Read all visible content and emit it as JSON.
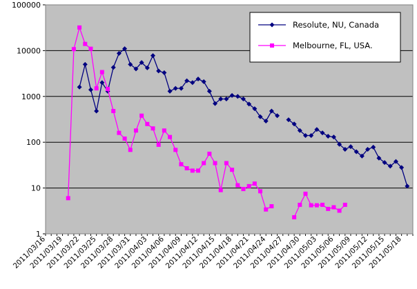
{
  "chart_data": {
    "type": "line",
    "title": "",
    "xlabel": "",
    "ylabel": "",
    "y_scale": "log",
    "ylim": [
      1,
      100000
    ],
    "y_ticks": [
      "1",
      "10",
      "100",
      "1000",
      "10000",
      "100000"
    ],
    "grid": "horizontal",
    "legend_position": "top-right",
    "x_start": "2011-03-16",
    "x_end": "2011-05-20",
    "x_tick_labels": [
      "2011/03/16",
      "2011/03/19",
      "2011/03/22",
      "2011/03/25",
      "2011/03/28",
      "2011/03/31",
      "2011/04/03",
      "2011/04/06",
      "2011/04/09",
      "2011/04/12",
      "2011/04/15",
      "2011/04/18",
      "2011/04/21",
      "2011/04/24",
      "2011/04/27",
      "2011/04/30",
      "2011/05/03",
      "2011/05/06",
      "2011/05/09",
      "2011/05/12",
      "2011/05/15",
      "2011/05/18"
    ],
    "series": [
      {
        "name": "Resolute, NU, Canada",
        "color": "#000080",
        "marker": "diamond",
        "points": [
          [
            "2011-03-22",
            1600
          ],
          [
            "2011-03-23",
            5000
          ],
          [
            "2011-03-24",
            1400
          ],
          [
            "2011-03-25",
            480
          ],
          [
            "2011-03-26",
            2000
          ],
          [
            "2011-03-27",
            1300
          ],
          [
            "2011-03-28",
            4300
          ],
          [
            "2011-03-29",
            8700
          ],
          [
            "2011-03-30",
            11000
          ],
          [
            "2011-03-31",
            5000
          ],
          [
            "2011-04-01",
            4000
          ],
          [
            "2011-04-02",
            5500
          ],
          [
            "2011-04-03",
            4200
          ],
          [
            "2011-04-04",
            7800
          ],
          [
            "2011-04-05",
            3600
          ],
          [
            "2011-04-06",
            3300
          ],
          [
            "2011-04-07",
            1300
          ],
          [
            "2011-04-08",
            1500
          ],
          [
            "2011-04-09",
            1500
          ],
          [
            "2011-04-10",
            2200
          ],
          [
            "2011-04-11",
            2000
          ],
          [
            "2011-04-12",
            2400
          ],
          [
            "2011-04-13",
            2100
          ],
          [
            "2011-04-14",
            1300
          ],
          [
            "2011-04-15",
            700
          ],
          [
            "2011-04-16",
            880
          ],
          [
            "2011-04-17",
            880
          ],
          [
            "2011-04-18",
            1050
          ],
          [
            "2011-04-19",
            1000
          ],
          [
            "2011-04-20",
            880
          ],
          [
            "2011-04-21",
            680
          ],
          [
            "2011-04-22",
            540
          ],
          [
            "2011-04-23",
            360
          ],
          [
            "2011-04-24",
            290
          ],
          [
            "2011-04-25",
            480
          ],
          [
            "2011-04-26",
            380
          ],
          null,
          [
            "2011-04-28",
            310
          ],
          [
            "2011-04-29",
            250
          ],
          [
            "2011-04-30",
            180
          ],
          [
            "2011-05-01",
            140
          ],
          [
            "2011-05-02",
            140
          ],
          [
            "2011-05-03",
            190
          ],
          [
            "2011-05-04",
            160
          ],
          [
            "2011-05-05",
            135
          ],
          [
            "2011-05-06",
            130
          ],
          [
            "2011-05-07",
            90
          ],
          [
            "2011-05-08",
            70
          ],
          [
            "2011-05-09",
            80
          ],
          [
            "2011-05-10",
            62
          ],
          [
            "2011-05-11",
            50
          ],
          [
            "2011-05-12",
            70
          ],
          [
            "2011-05-13",
            78
          ],
          [
            "2011-05-14",
            45
          ],
          [
            "2011-05-15",
            36
          ],
          [
            "2011-05-16",
            30
          ],
          [
            "2011-05-17",
            38
          ],
          [
            "2011-05-18",
            28
          ],
          [
            "2011-05-19",
            11
          ]
        ]
      },
      {
        "name": "Melbourne, FL, USA.",
        "color": "#ff00ff",
        "marker": "square",
        "points": [
          [
            "2011-03-20",
            6
          ],
          [
            "2011-03-21",
            10800
          ],
          [
            "2011-03-22",
            32000
          ],
          [
            "2011-03-23",
            14000
          ],
          [
            "2011-03-24",
            11000
          ],
          [
            "2011-03-25",
            1500
          ],
          [
            "2011-03-26",
            3400
          ],
          [
            "2011-03-27",
            1450
          ],
          [
            "2011-03-28",
            480
          ],
          [
            "2011-03-29",
            160
          ],
          [
            "2011-03-30",
            120
          ],
          [
            "2011-03-31",
            68
          ],
          [
            "2011-04-01",
            180
          ],
          [
            "2011-04-02",
            380
          ],
          [
            "2011-04-03",
            250
          ],
          [
            "2011-04-04",
            200
          ],
          [
            "2011-04-05",
            88
          ],
          [
            "2011-04-06",
            180
          ],
          [
            "2011-04-07",
            130
          ],
          [
            "2011-04-08",
            68
          ],
          [
            "2011-04-09",
            33
          ],
          [
            "2011-04-10",
            27
          ],
          [
            "2011-04-11",
            24
          ],
          [
            "2011-04-12",
            24
          ],
          [
            "2011-04-13",
            35
          ],
          [
            "2011-04-14",
            56
          ],
          [
            "2011-04-15",
            35
          ],
          [
            "2011-04-16",
            9
          ],
          [
            "2011-04-17",
            35
          ],
          [
            "2011-04-18",
            25
          ],
          [
            "2011-04-19",
            11.5
          ],
          [
            "2011-04-20",
            9.5
          ],
          [
            "2011-04-21",
            11
          ],
          [
            "2011-04-22",
            12.5
          ],
          [
            "2011-04-23",
            8.5
          ],
          [
            "2011-04-24",
            3.4
          ],
          [
            "2011-04-25",
            4
          ],
          null,
          [
            "2011-04-29",
            2.3
          ],
          [
            "2011-04-30",
            4.3
          ],
          [
            "2011-05-01",
            7.5
          ],
          [
            "2011-05-02",
            4.2
          ],
          [
            "2011-05-03",
            4.2
          ],
          [
            "2011-05-04",
            4.3
          ],
          [
            "2011-05-05",
            3.5
          ],
          [
            "2011-05-06",
            3.8
          ],
          [
            "2011-05-07",
            3.2
          ],
          [
            "2011-05-08",
            4.3
          ]
        ]
      }
    ]
  }
}
